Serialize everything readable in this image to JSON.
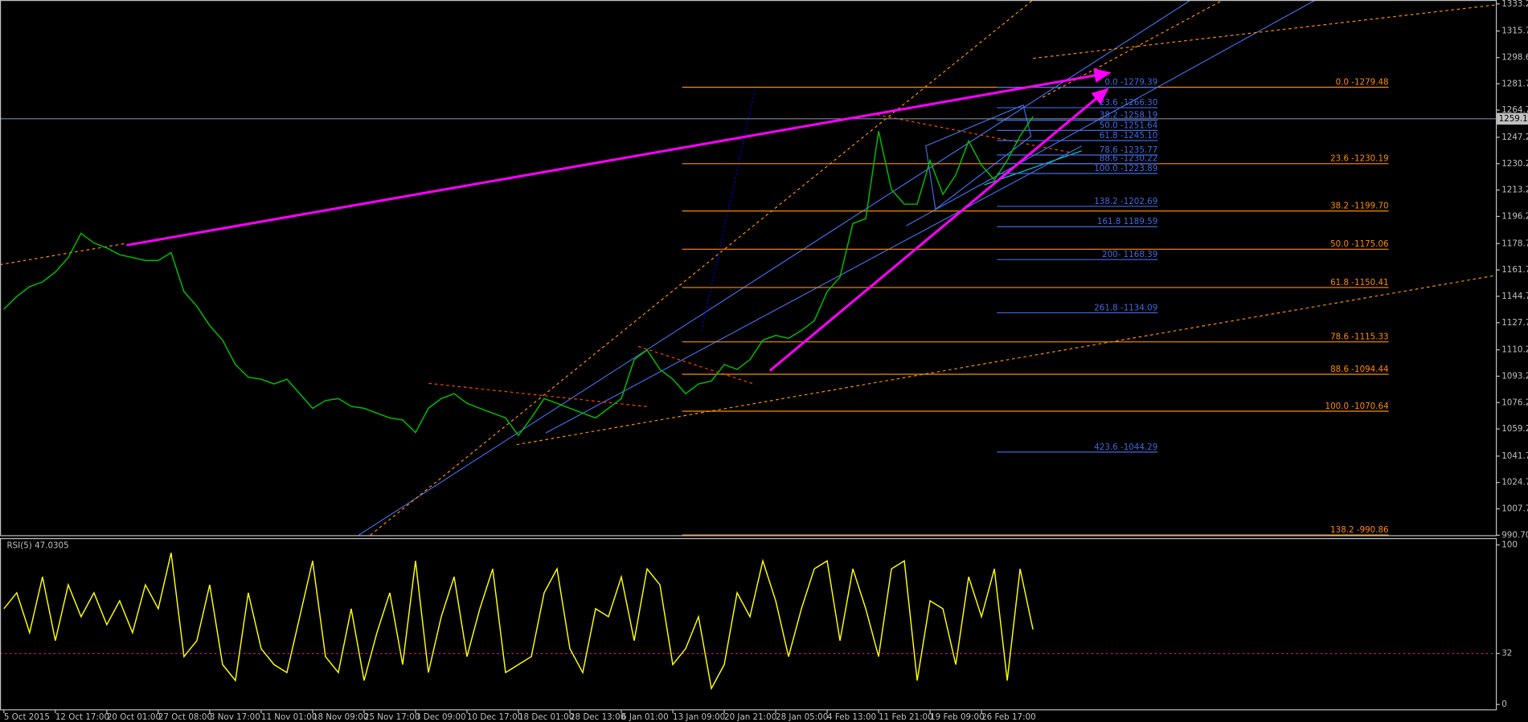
{
  "chart_data": [
    {
      "type": "line",
      "categories": [
        "5 Oct 2015",
        null,
        null,
        null,
        "12 Oct 17:00",
        null,
        null,
        null,
        "20 Oct 01:00",
        null,
        null,
        null,
        "27 Oct 08:00",
        null,
        null,
        null,
        "3 Nov 17:00",
        null,
        null,
        null,
        "11 Nov 01:00",
        null,
        null,
        null,
        "18 Nov 09:00",
        null,
        null,
        null,
        "25 Nov 17:00",
        null,
        null,
        null,
        "3 Dec 09:00",
        null,
        null,
        null,
        "10 Dec 17:00",
        null,
        null,
        null,
        "18 Dec 01:00",
        null,
        null,
        null,
        "28 Dec 13:00",
        null,
        null,
        null,
        "6 Jan 01:00",
        null,
        null,
        null,
        "13 Jan 09:00",
        null,
        null,
        null,
        "20 Jan 21:00",
        null,
        null,
        null,
        "28 Jan 05:00",
        null,
        null,
        null,
        "4 Feb 13:00",
        null,
        null,
        null,
        "11 Feb 21:00",
        null,
        null,
        null,
        "19 Feb 09:00",
        null,
        null,
        null,
        "26 Feb 17:00",
        null,
        null,
        null,
        null
      ],
      "series": [
        {
          "color": "#00c000",
          "values": [
            1136.4,
            1144.6,
            1150.9,
            1154.0,
            1160.3,
            1169.7,
            1185.3,
            1179.1,
            1175.9,
            1171.5,
            1169.7,
            1167.8,
            1167.8,
            1172.8,
            1147.7,
            1138.3,
            1125.8,
            1116.4,
            1100.7,
            1092.6,
            1091.3,
            1088.2,
            1091.3,
            1081.9,
            1072.5,
            1077.5,
            1078.8,
            1073.8,
            1072.5,
            1069.4,
            1066.3,
            1065.0,
            1056.9,
            1072.5,
            1078.8,
            1081.9,
            1075.7,
            1072.5,
            1069.4,
            1066.3,
            1055.0,
            1066.3,
            1078.8,
            1075.7,
            1072.5,
            1069.4,
            1066.3,
            1072.5,
            1078.8,
            1103.9,
            1110.1,
            1097.6,
            1091.3,
            1081.9,
            1088.2,
            1090.1,
            1100.7,
            1097.6,
            1103.9,
            1116.4,
            1119.5,
            1117.6,
            1122.7,
            1128.9,
            1147.7,
            1157.1,
            1191.6,
            1194.7,
            1251.1,
            1213.5,
            1204.1,
            1204.1,
            1232.3,
            1210.4,
            1222.9,
            1244.8,
            1229.2,
            1219.8,
            1232.3,
            1248.0,
            1260.5
          ]
        }
      ],
      "ylim": [
        990.1,
        1335.7
      ],
      "yticks": [
        {
          "value": 1333.2,
          "label": "1333.20"
        },
        {
          "value": 1315.7,
          "label": "1315.70"
        },
        {
          "value": 1298.6,
          "label": "1298.60"
        },
        {
          "value": 1281.7,
          "label": "1281.70"
        },
        {
          "value": 1264.7,
          "label": "1264.70"
        },
        {
          "value": 1247.2,
          "label": "1247.20"
        },
        {
          "value": 1230.2,
          "label": "1230.20"
        },
        {
          "value": 1213.2,
          "label": "1213.20"
        },
        {
          "value": 1196.2,
          "label": "1196.20"
        },
        {
          "value": 1178.7,
          "label": "1178.70"
        },
        {
          "value": 1161.7,
          "label": "1161.70"
        },
        {
          "value": 1144.7,
          "label": "1144.70"
        },
        {
          "value": 1127.7,
          "label": "1127.70"
        },
        {
          "value": 1110.2,
          "label": "1110.20"
        },
        {
          "value": 1093.2,
          "label": "1093.20"
        },
        {
          "value": 1076.2,
          "label": "1076.20"
        },
        {
          "value": 1059.2,
          "label": "1059.20"
        },
        {
          "value": 1041.7,
          "label": "1041.70"
        },
        {
          "value": 1024.7,
          "label": "1024.70"
        },
        {
          "value": 1007.7,
          "label": "1007.70"
        },
        {
          "value": 990.7,
          "label": "990.70"
        }
      ],
      "current_price": 1259.13,
      "fib_retracement": {
        "color": "#ff8c00",
        "levels": [
          {
            "value": 1279.48,
            "label": "0.0 -1279.48"
          },
          {
            "value": 1230.19,
            "label": "23.6 -1230.19"
          },
          {
            "value": 1199.7,
            "label": "38.2 -1199.70"
          },
          {
            "value": 1175.06,
            "label": "50.0 -1175.06"
          },
          {
            "value": 1150.41,
            "label": "61.8 -1150.41"
          },
          {
            "value": 1115.33,
            "label": "78.6 -1115.33"
          },
          {
            "value": 1094.44,
            "label": "88.6 -1094.44"
          },
          {
            "value": 1070.64,
            "label": "100.0 -1070.64"
          },
          {
            "value": 990.86,
            "label": "138.2 -990.86"
          }
        ]
      },
      "fib_expansion": {
        "color": "#4169e1",
        "levels": [
          {
            "value": 1279.39,
            "label": "0.0 -1279.39"
          },
          {
            "value": 1266.3,
            "label": "23.6 -1266.30"
          },
          {
            "value": 1258.19,
            "label": "38.2 -1258.19"
          },
          {
            "value": 1251.64,
            "label": "50.0 -1251.64"
          },
          {
            "value": 1245.1,
            "label": "61.8 -1245.10"
          },
          {
            "value": 1235.77,
            "label": "78.6 -1235.77"
          },
          {
            "value": 1230.22,
            "label": "88.6 -1230.22"
          },
          {
            "value": 1223.89,
            "label": "100.0 -1223.89"
          },
          {
            "value": 1202.69,
            "label": "138.2 -1202.69"
          },
          {
            "value": 1189.59,
            "label": "161.8 1189.59"
          },
          {
            "value": 1168.39,
            "label": "200- 1168.39"
          },
          {
            "value": 1134.09,
            "label": "261.8 -1134.09"
          },
          {
            "value": 1044.29,
            "label": "423.6 -1044.29"
          }
        ]
      }
    },
    {
      "type": "line",
      "title": "RSI(5) 47.0305",
      "series": [
        {
          "color": "#ffff00",
          "values": [
            60,
            70,
            45,
            80,
            40,
            75,
            55,
            70,
            50,
            65,
            45,
            75,
            60,
            95,
            30,
            40,
            75,
            25,
            15,
            70,
            35,
            25,
            20,
            55,
            90,
            30,
            20,
            60,
            15,
            45,
            70,
            25,
            90,
            20,
            55,
            80,
            30,
            60,
            85,
            20,
            25,
            30,
            70,
            85,
            35,
            20,
            60,
            55,
            80,
            40,
            85,
            75,
            25,
            35,
            55,
            10,
            25,
            70,
            55,
            90,
            65,
            30,
            60,
            85,
            90,
            40,
            85,
            60,
            30,
            85,
            90,
            15,
            65,
            60,
            25,
            80,
            55,
            85,
            15,
            85,
            47.0305
          ]
        }
      ],
      "ylim": [
        0,
        100
      ],
      "yticks": [
        0,
        32,
        100
      ],
      "levels": [
        32
      ]
    }
  ]
}
